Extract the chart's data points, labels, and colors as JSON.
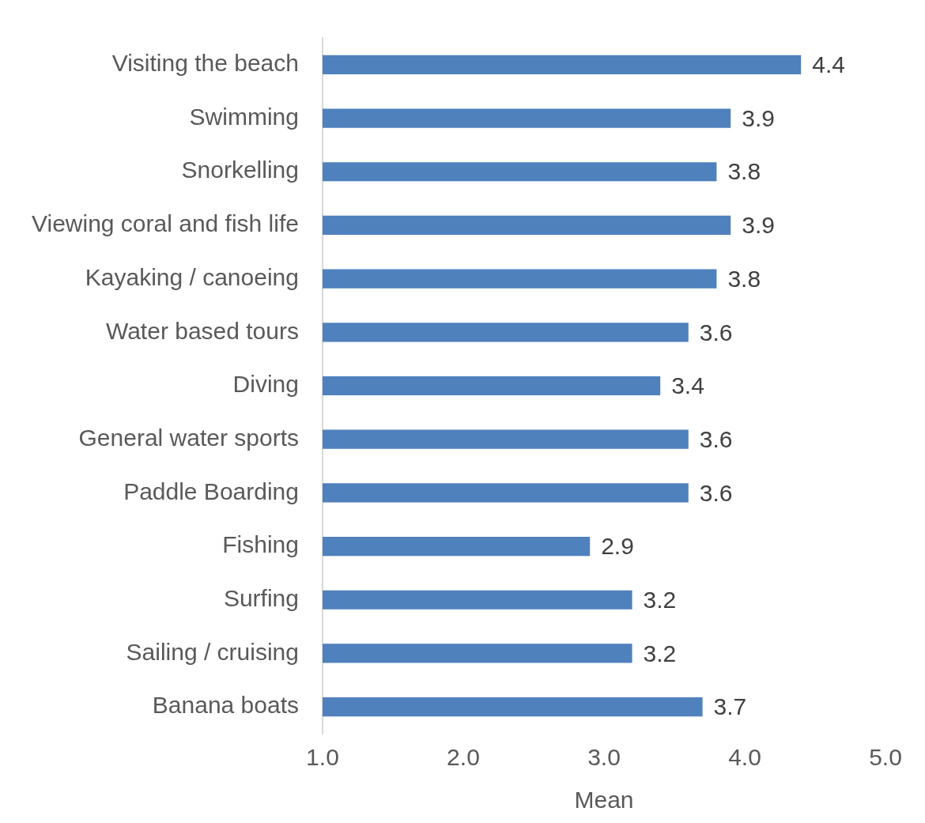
{
  "chart_data": {
    "type": "bar",
    "orientation": "horizontal",
    "xlabel": "Mean",
    "categories": [
      "Visiting the beach",
      "Swimming",
      "Snorkelling",
      "Viewing coral and fish life",
      "Kayaking / canoeing",
      "Water based tours",
      "Diving",
      "General water sports",
      "Paddle Boarding",
      "Fishing",
      "Surfing",
      "Sailing / cruising",
      "Banana boats"
    ],
    "values": [
      4.4,
      3.9,
      3.8,
      3.9,
      3.8,
      3.6,
      3.4,
      3.6,
      3.6,
      2.9,
      3.2,
      3.2,
      3.7
    ],
    "data_labels": true,
    "color": "#4f81bd",
    "xlim": [
      1,
      5
    ],
    "xticks": [
      {
        "value": 1,
        "label": "1.0"
      },
      {
        "value": 2,
        "label": "2.0"
      },
      {
        "value": 3,
        "label": "3.0"
      },
      {
        "value": 4,
        "label": "4.0"
      },
      {
        "value": 5,
        "label": "5.0"
      }
    ],
    "grid": false,
    "legend": false
  }
}
